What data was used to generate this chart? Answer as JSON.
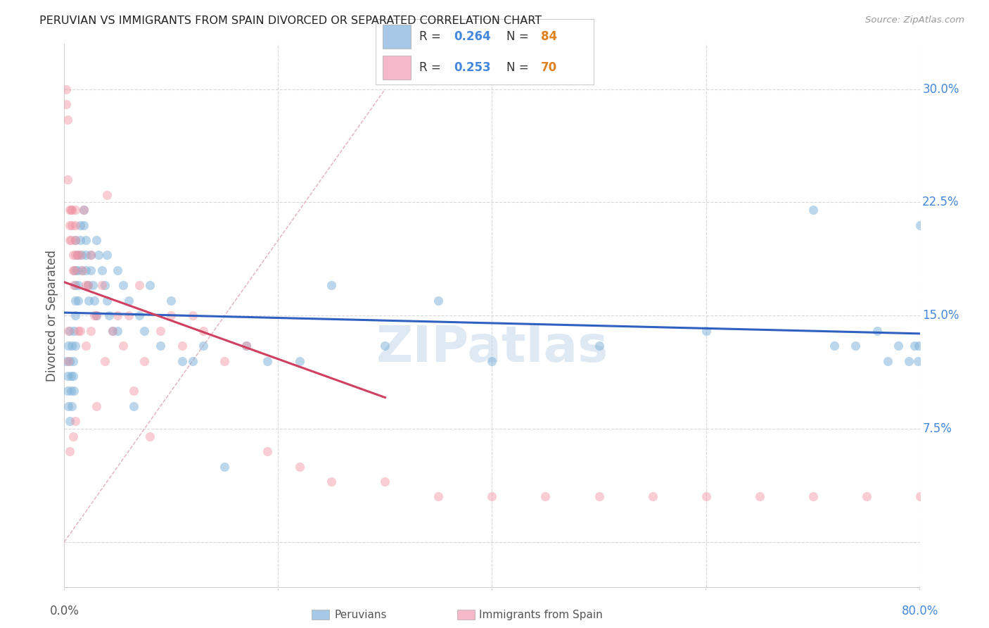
{
  "title": "PERUVIAN VS IMMIGRANTS FROM SPAIN DIVORCED OR SEPARATED CORRELATION CHART",
  "source": "Source: ZipAtlas.com",
  "ylabel": "Divorced or Separated",
  "xlim": [
    0.0,
    0.8
  ],
  "ylim": [
    -0.03,
    0.33
  ],
  "y_ticks": [
    0.0,
    0.075,
    0.15,
    0.225,
    0.3
  ],
  "y_tick_labels": [
    "",
    "7.5%",
    "15.0%",
    "22.5%",
    "30.0%"
  ],
  "grid_color": "#d8d8d8",
  "background_color": "#ffffff",
  "watermark": "ZIPatlas",
  "legend_peru_color": "#a8c8e8",
  "legend_spain_color": "#f4b8c8",
  "peru_dot_color": "#7ab0d8",
  "spain_dot_color": "#f090a0",
  "peru_line_color": "#3060c0",
  "spain_line_color": "#d04060",
  "diag_color": "#e0b0b8",
  "peru_R": "0.264",
  "peru_N": "84",
  "spain_R": "0.253",
  "spain_N": "70",
  "num_color": "#4488dd",
  "n_color": "#e08020",
  "peruvian_x": [
    0.002,
    0.003,
    0.003,
    0.004,
    0.004,
    0.005,
    0.005,
    0.005,
    0.006,
    0.006,
    0.007,
    0.007,
    0.008,
    0.008,
    0.009,
    0.009,
    0.01,
    0.01,
    0.01,
    0.01,
    0.01,
    0.01,
    0.012,
    0.012,
    0.013,
    0.013,
    0.015,
    0.015,
    0.016,
    0.016,
    0.018,
    0.018,
    0.02,
    0.02,
    0.02,
    0.022,
    0.023,
    0.025,
    0.025,
    0.027,
    0.028,
    0.03,
    0.03,
    0.032,
    0.035,
    0.038,
    0.04,
    0.04,
    0.042,
    0.045,
    0.05,
    0.05,
    0.055,
    0.06,
    0.065,
    0.07,
    0.075,
    0.08,
    0.09,
    0.1,
    0.11,
    0.12,
    0.13,
    0.15,
    0.17,
    0.19,
    0.22,
    0.25,
    0.3,
    0.35,
    0.4,
    0.5,
    0.6,
    0.7,
    0.72,
    0.74,
    0.76,
    0.77,
    0.78,
    0.79,
    0.795,
    0.798,
    0.799,
    0.8
  ],
  "peruvian_y": [
    0.12,
    0.11,
    0.1,
    0.13,
    0.09,
    0.14,
    0.12,
    0.08,
    0.11,
    0.1,
    0.13,
    0.09,
    0.12,
    0.11,
    0.14,
    0.1,
    0.2,
    0.18,
    0.17,
    0.16,
    0.15,
    0.13,
    0.19,
    0.18,
    0.17,
    0.16,
    0.21,
    0.2,
    0.19,
    0.18,
    0.22,
    0.21,
    0.2,
    0.19,
    0.18,
    0.17,
    0.16,
    0.19,
    0.18,
    0.17,
    0.16,
    0.2,
    0.15,
    0.19,
    0.18,
    0.17,
    0.19,
    0.16,
    0.15,
    0.14,
    0.18,
    0.14,
    0.17,
    0.16,
    0.09,
    0.15,
    0.14,
    0.17,
    0.13,
    0.16,
    0.12,
    0.12,
    0.13,
    0.05,
    0.13,
    0.12,
    0.12,
    0.17,
    0.13,
    0.16,
    0.12,
    0.13,
    0.14,
    0.22,
    0.13,
    0.13,
    0.14,
    0.12,
    0.13,
    0.12,
    0.13,
    0.12,
    0.13,
    0.21
  ],
  "spain_x": [
    0.002,
    0.002,
    0.003,
    0.003,
    0.004,
    0.004,
    0.005,
    0.005,
    0.005,
    0.005,
    0.006,
    0.006,
    0.007,
    0.007,
    0.008,
    0.008,
    0.008,
    0.009,
    0.009,
    0.01,
    0.01,
    0.01,
    0.01,
    0.01,
    0.012,
    0.013,
    0.015,
    0.015,
    0.017,
    0.018,
    0.02,
    0.02,
    0.022,
    0.025,
    0.025,
    0.028,
    0.03,
    0.03,
    0.035,
    0.038,
    0.04,
    0.045,
    0.05,
    0.055,
    0.06,
    0.065,
    0.07,
    0.075,
    0.08,
    0.09,
    0.1,
    0.11,
    0.12,
    0.13,
    0.15,
    0.17,
    0.19,
    0.22,
    0.25,
    0.3,
    0.35,
    0.4,
    0.45,
    0.5,
    0.55,
    0.6,
    0.65,
    0.7,
    0.75,
    0.8
  ],
  "spain_y": [
    0.3,
    0.29,
    0.28,
    0.24,
    0.14,
    0.12,
    0.22,
    0.21,
    0.2,
    0.06,
    0.22,
    0.2,
    0.22,
    0.21,
    0.19,
    0.18,
    0.07,
    0.18,
    0.17,
    0.22,
    0.21,
    0.2,
    0.19,
    0.08,
    0.19,
    0.14,
    0.19,
    0.14,
    0.18,
    0.22,
    0.17,
    0.13,
    0.17,
    0.19,
    0.14,
    0.15,
    0.15,
    0.09,
    0.17,
    0.12,
    0.23,
    0.14,
    0.15,
    0.13,
    0.15,
    0.1,
    0.17,
    0.12,
    0.07,
    0.14,
    0.15,
    0.13,
    0.15,
    0.14,
    0.12,
    0.13,
    0.06,
    0.05,
    0.04,
    0.04,
    0.03,
    0.03,
    0.03,
    0.03,
    0.03,
    0.03,
    0.03,
    0.03,
    0.03,
    0.03
  ]
}
